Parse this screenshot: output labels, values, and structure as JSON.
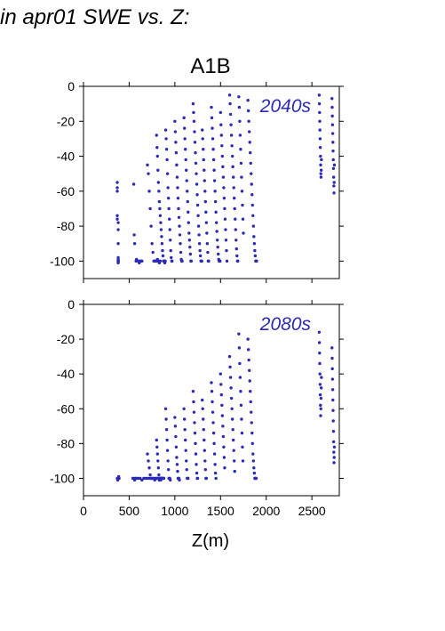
{
  "heading": "in apr01 SWE vs. Z:",
  "figure": {
    "scenario": "A1B",
    "xlabel": "Z(m)",
    "colors": {
      "points": "#2b2bb8",
      "annotation": "#2b2bb8",
      "axes": "#000000"
    }
  },
  "chart_data": [
    {
      "type": "scatter",
      "annotation": "2040s",
      "xlim": [
        0,
        2800
      ],
      "ylim": [
        -110,
        0
      ],
      "yticks": [
        0,
        -20,
        -40,
        -60,
        -80,
        -100
      ],
      "xticks": [
        0,
        500,
        1000,
        1500,
        2000,
        2500
      ],
      "show_xtick_labels": false,
      "series": [
        {
          "x": [
            370,
            370,
            370,
            370,
            370,
            380,
            380,
            380,
            380,
            380,
            380,
            380,
            380,
            380,
            380
          ],
          "y": [
            -55,
            -58,
            -60,
            -74,
            -76,
            -78,
            -82,
            -90,
            -98,
            -100,
            -100,
            -100,
            -101,
            -100,
            -99
          ]
        },
        {
          "x": [
            550,
            555,
            560,
            575,
            580,
            600,
            610,
            620,
            630,
            640
          ],
          "y": [
            -56,
            -85,
            -90,
            -100,
            -99,
            -100,
            -101,
            -100,
            -100,
            -100
          ]
        },
        {
          "x": [
            700,
            710,
            720,
            730,
            740,
            750,
            760,
            770,
            780,
            790,
            800,
            810,
            820,
            830,
            840
          ],
          "y": [
            -45,
            -50,
            -60,
            -70,
            -80,
            -90,
            -95,
            -100,
            -100,
            -100,
            -100,
            -99,
            -100,
            -101,
            -100
          ]
        },
        {
          "x": [
            800,
            805,
            810,
            815,
            820,
            825,
            830,
            835,
            840,
            845,
            850,
            855,
            860,
            865,
            870,
            875,
            880,
            885,
            890,
            895
          ],
          "y": [
            -28,
            -35,
            -40,
            -48,
            -55,
            -60,
            -66,
            -70,
            -74,
            -78,
            -82,
            -86,
            -90,
            -94,
            -97,
            -100,
            -100,
            -100,
            -101,
            -100
          ]
        },
        {
          "x": [
            900,
            905,
            910,
            915,
            920,
            925,
            930,
            935,
            940,
            945,
            950,
            955,
            960,
            965,
            970
          ],
          "y": [
            -25,
            -30,
            -36,
            -42,
            -50,
            -58,
            -64,
            -70,
            -76,
            -82,
            -88,
            -94,
            -98,
            -100,
            -100
          ]
        },
        {
          "x": [
            1000,
            1005,
            1010,
            1015,
            1020,
            1025,
            1030,
            1035,
            1040,
            1045,
            1050,
            1055,
            1060,
            1065,
            1070,
            1075,
            1080
          ],
          "y": [
            -20,
            -26,
            -32,
            -38,
            -45,
            -52,
            -58,
            -64,
            -70,
            -75,
            -80,
            -85,
            -90,
            -95,
            -99,
            -100,
            -100
          ]
        },
        {
          "x": [
            1100,
            1105,
            1110,
            1115,
            1120,
            1125,
            1130,
            1135,
            1140,
            1145,
            1150,
            1155,
            1160,
            1165,
            1170,
            1175,
            1180
          ],
          "y": [
            -18,
            -24,
            -30,
            -36,
            -42,
            -48,
            -54,
            -60,
            -66,
            -72,
            -78,
            -84,
            -88,
            -92,
            -96,
            -100,
            -100
          ]
        },
        {
          "x": [
            1200,
            1205,
            1210,
            1215,
            1220,
            1225,
            1230,
            1235,
            1240,
            1245,
            1250,
            1255,
            1260,
            1265,
            1270,
            1275,
            1280,
            1285,
            1290,
            1295
          ],
          "y": [
            -10,
            -15,
            -20,
            -26,
            -32,
            -38,
            -44,
            -50,
            -56,
            -62,
            -68,
            -74,
            -80,
            -85,
            -90,
            -94,
            -97,
            -100,
            -100,
            -100
          ]
        },
        {
          "x": [
            1300,
            1305,
            1310,
            1315,
            1320,
            1325,
            1330,
            1335,
            1340,
            1345,
            1350,
            1355,
            1360,
            1365,
            1370
          ],
          "y": [
            -25,
            -30,
            -36,
            -42,
            -48,
            -54,
            -60,
            -66,
            -72,
            -78,
            -84,
            -90,
            -95,
            -100,
            -100
          ]
        },
        {
          "x": [
            1400,
            1405,
            1410,
            1415,
            1420,
            1425,
            1430,
            1435,
            1440,
            1445,
            1450,
            1455,
            1460,
            1465,
            1470,
            1475,
            1480,
            1485,
            1490,
            1495
          ],
          "y": [
            -12,
            -18,
            -24,
            -30,
            -36,
            -42,
            -48,
            -54,
            -60,
            -66,
            -72,
            -78,
            -83,
            -88,
            -92,
            -96,
            -99,
            -100,
            -100,
            -100
          ]
        },
        {
          "x": [
            1500,
            1505,
            1510,
            1515,
            1520,
            1525,
            1530,
            1535,
            1540,
            1545,
            1550,
            1555,
            1560,
            1565,
            1570
          ],
          "y": [
            -15,
            -22,
            -28,
            -34,
            -40,
            -46,
            -52,
            -58,
            -64,
            -70,
            -76,
            -82,
            -88,
            -94,
            -100
          ]
        },
        {
          "x": [
            1600,
            1605,
            1610,
            1615,
            1620,
            1625,
            1630,
            1635,
            1640,
            1645,
            1650,
            1655,
            1660,
            1665,
            1670,
            1675,
            1680,
            1685,
            1690
          ],
          "y": [
            -5,
            -10,
            -16,
            -22,
            -28,
            -34,
            -40,
            -46,
            -52,
            -58,
            -64,
            -70,
            -76,
            -82,
            -88,
            -93,
            -97,
            -100,
            -100
          ]
        },
        {
          "x": [
            1700,
            1705,
            1710,
            1715,
            1720,
            1725,
            1730,
            1735,
            1740,
            1745,
            1750
          ],
          "y": [
            -6,
            -12,
            -20,
            -28,
            -36,
            -44,
            -52,
            -60,
            -68,
            -76,
            -84
          ]
        },
        {
          "x": [
            1800,
            1805,
            1810,
            1815,
            1820,
            1825,
            1830,
            1835,
            1840,
            1845,
            1850,
            1855,
            1860,
            1865,
            1870,
            1875,
            1880,
            1885,
            1890,
            1895
          ],
          "y": [
            -8,
            -14,
            -20,
            -26,
            -32,
            -38,
            -44,
            -50,
            -56,
            -62,
            -68,
            -74,
            -80,
            -86,
            -90,
            -94,
            -97,
            -100,
            -100,
            -100
          ]
        },
        {
          "x": [
            2580,
            2582,
            2584,
            2586,
            2588,
            2590,
            2592,
            2594,
            2596,
            2598,
            2600,
            2602,
            2604
          ],
          "y": [
            -5,
            -10,
            -15,
            -20,
            -25,
            -30,
            -35,
            -40,
            -45,
            -50,
            -52,
            -48,
            -42
          ]
        },
        {
          "x": [
            2720,
            2722,
            2724,
            2726,
            2728,
            2730,
            2732,
            2734,
            2736,
            2738,
            2740,
            2742,
            2744,
            2746
          ],
          "y": [
            -7,
            -12,
            -17,
            -22,
            -27,
            -32,
            -37,
            -42,
            -47,
            -52,
            -57,
            -61,
            -55,
            -45
          ]
        }
      ]
    },
    {
      "type": "scatter",
      "annotation": "2080s",
      "xlim": [
        0,
        2800
      ],
      "ylim": [
        -110,
        0
      ],
      "yticks": [
        0,
        -20,
        -40,
        -60,
        -80,
        -100
      ],
      "xticks": [
        0,
        500,
        1000,
        1500,
        2000,
        2500
      ],
      "show_xtick_labels": true,
      "series": [
        {
          "x": [
            370,
            375,
            380,
            385,
            390,
            540,
            550,
            560,
            570,
            580,
            600,
            620,
            640,
            660,
            680,
            700,
            720,
            740
          ],
          "y": [
            -100,
            -101,
            -100,
            -99,
            -100,
            -100,
            -100,
            -101,
            -100,
            -100,
            -100,
            -100,
            -101,
            -100,
            -100,
            -100,
            -100,
            -100
          ]
        },
        {
          "x": [
            700,
            710,
            720,
            730,
            740,
            750,
            760,
            770,
            780,
            790,
            800,
            810,
            820,
            830,
            840,
            850,
            860
          ],
          "y": [
            -86,
            -90,
            -94,
            -98,
            -100,
            -100,
            -100,
            -100,
            -101,
            -100,
            -100,
            -100,
            -100,
            -101,
            -100,
            -100,
            -100
          ]
        },
        {
          "x": [
            800,
            805,
            810,
            815,
            820,
            825,
            830,
            835,
            840,
            845,
            850,
            855,
            860,
            865,
            870,
            875,
            880
          ],
          "y": [
            -78,
            -82,
            -86,
            -90,
            -94,
            -98,
            -100,
            -100,
            -100,
            -101,
            -100,
            -100,
            -100,
            -100,
            -100,
            -100,
            -100
          ]
        },
        {
          "x": [
            900,
            905,
            910,
            915,
            920,
            925,
            930,
            935,
            940,
            945,
            950
          ],
          "y": [
            -60,
            -66,
            -72,
            -78,
            -84,
            -90,
            -95,
            -100,
            -100,
            -100,
            -101
          ]
        },
        {
          "x": [
            1000,
            1005,
            1010,
            1015,
            1020,
            1025,
            1030,
            1035,
            1040,
            1045,
            1050
          ],
          "y": [
            -65,
            -70,
            -76,
            -82,
            -88,
            -92,
            -96,
            -100,
            -100,
            -100,
            -101
          ]
        },
        {
          "x": [
            1100,
            1105,
            1110,
            1115,
            1120,
            1125,
            1130,
            1135,
            1140,
            1145
          ],
          "y": [
            -60,
            -66,
            -72,
            -78,
            -84,
            -90,
            -95,
            -100,
            -100,
            -100
          ]
        },
        {
          "x": [
            1200,
            1205,
            1210,
            1215,
            1220,
            1225,
            1230,
            1235,
            1240,
            1245,
            1250
          ],
          "y": [
            -50,
            -56,
            -62,
            -68,
            -74,
            -80,
            -86,
            -92,
            -97,
            -100,
            -100
          ]
        },
        {
          "x": [
            1300,
            1305,
            1310,
            1315,
            1320,
            1325,
            1330,
            1335,
            1340,
            1345
          ],
          "y": [
            -55,
            -60,
            -66,
            -72,
            -78,
            -84,
            -90,
            -95,
            -100,
            -100
          ]
        },
        {
          "x": [
            1400,
            1405,
            1410,
            1415,
            1420,
            1425,
            1430,
            1435,
            1440,
            1445,
            1450
          ],
          "y": [
            -45,
            -50,
            -56,
            -62,
            -68,
            -74,
            -80,
            -86,
            -92,
            -97,
            -100
          ]
        },
        {
          "x": [
            1500,
            1505,
            1510,
            1515,
            1520,
            1525,
            1530,
            1535,
            1540,
            1545
          ],
          "y": [
            -40,
            -46,
            -52,
            -58,
            -64,
            -70,
            -76,
            -82,
            -88,
            -94
          ]
        },
        {
          "x": [
            1600,
            1605,
            1610,
            1615,
            1620,
            1625,
            1630,
            1635,
            1640,
            1645,
            1650,
            1655
          ],
          "y": [
            -30,
            -36,
            -42,
            -48,
            -54,
            -60,
            -66,
            -72,
            -78,
            -84,
            -90,
            -96
          ]
        },
        {
          "x": [
            1700,
            1705,
            1710,
            1715,
            1720,
            1725,
            1730,
            1735,
            1740,
            1745
          ],
          "y": [
            -17,
            -25,
            -34,
            -42,
            -50,
            -58,
            -66,
            -74,
            -82,
            -90
          ]
        },
        {
          "x": [
            1800,
            1805,
            1810,
            1815,
            1820,
            1825,
            1830,
            1835,
            1840,
            1845,
            1850,
            1855,
            1860,
            1865,
            1870,
            1875,
            1880,
            1885,
            1890
          ],
          "y": [
            -20,
            -26,
            -32,
            -38,
            -44,
            -50,
            -56,
            -62,
            -68,
            -74,
            -80,
            -86,
            -90,
            -94,
            -97,
            -100,
            -100,
            -100,
            -100
          ]
        },
        {
          "x": [
            2580,
            2582,
            2584,
            2586,
            2588,
            2590,
            2592,
            2594,
            2596,
            2598,
            2600,
            2602,
            2604
          ],
          "y": [
            -16,
            -22,
            -28,
            -34,
            -40,
            -46,
            -52,
            -58,
            -64,
            -60,
            -54,
            -48,
            -42
          ]
        },
        {
          "x": [
            2720,
            2722,
            2724,
            2726,
            2728,
            2730,
            2732,
            2734,
            2736,
            2738,
            2740,
            2742,
            2744,
            2746
          ],
          "y": [
            -25,
            -31,
            -37,
            -43,
            -49,
            -55,
            -61,
            -67,
            -73,
            -79,
            -85,
            -91,
            -88,
            -82
          ]
        }
      ]
    }
  ]
}
